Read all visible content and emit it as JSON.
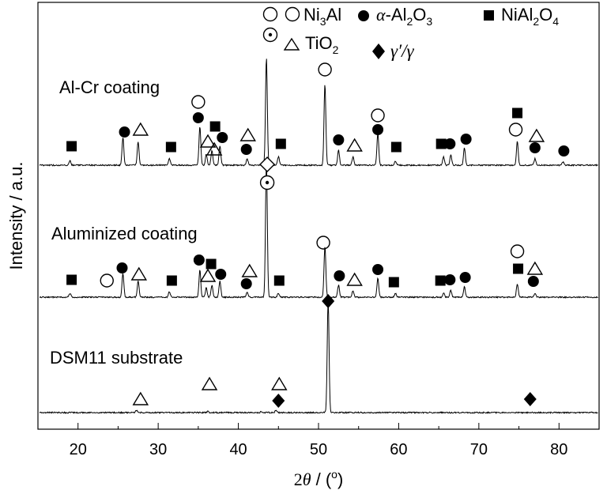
{
  "chart_data": {
    "type": "line",
    "xlabel": "2θ / (°)",
    "ylabel": "Intensity / a.u.",
    "xlim": [
      15,
      85
    ],
    "x_ticks": [
      "20",
      "30",
      "40",
      "50",
      "60",
      "70",
      "80"
    ],
    "series": [
      {
        "name": "Al-Cr coating",
        "baseline": 0,
        "peaks": [
          {
            "x": 19.0,
            "y": 4
          },
          {
            "x": 25.6,
            "y": 26
          },
          {
            "x": 27.5,
            "y": 22
          },
          {
            "x": 31.4,
            "y": 6
          },
          {
            "x": 35.2,
            "y": 36
          },
          {
            "x": 36.0,
            "y": 10
          },
          {
            "x": 36.7,
            "y": 14
          },
          {
            "x": 37.7,
            "y": 18
          },
          {
            "x": 41.1,
            "y": 6
          },
          {
            "x": 43.5,
            "y": 100
          },
          {
            "x": 45.0,
            "y": 8
          },
          {
            "x": 50.8,
            "y": 76
          },
          {
            "x": 52.5,
            "y": 14
          },
          {
            "x": 54.3,
            "y": 8
          },
          {
            "x": 57.4,
            "y": 30
          },
          {
            "x": 59.6,
            "y": 4
          },
          {
            "x": 65.6,
            "y": 8
          },
          {
            "x": 66.5,
            "y": 10
          },
          {
            "x": 68.2,
            "y": 16
          },
          {
            "x": 74.8,
            "y": 22
          },
          {
            "x": 77.0,
            "y": 6
          },
          {
            "x": 80.5,
            "y": 3
          }
        ]
      },
      {
        "name": "Aluminized coating",
        "baseline": 0,
        "peaks": [
          {
            "x": 19.0,
            "y": 3
          },
          {
            "x": 25.6,
            "y": 18
          },
          {
            "x": 27.5,
            "y": 12
          },
          {
            "x": 31.4,
            "y": 4
          },
          {
            "x": 35.2,
            "y": 20
          },
          {
            "x": 36.0,
            "y": 7
          },
          {
            "x": 36.7,
            "y": 9
          },
          {
            "x": 37.7,
            "y": 12
          },
          {
            "x": 41.1,
            "y": 4
          },
          {
            "x": 43.5,
            "y": 100
          },
          {
            "x": 45.0,
            "y": 3
          },
          {
            "x": 50.8,
            "y": 38
          },
          {
            "x": 52.5,
            "y": 9
          },
          {
            "x": 54.3,
            "y": 5
          },
          {
            "x": 57.4,
            "y": 14
          },
          {
            "x": 59.6,
            "y": 3
          },
          {
            "x": 65.6,
            "y": 3
          },
          {
            "x": 66.5,
            "y": 5
          },
          {
            "x": 68.2,
            "y": 8
          },
          {
            "x": 74.8,
            "y": 10
          },
          {
            "x": 77.0,
            "y": 3
          }
        ]
      },
      {
        "name": "DSM11 substrate",
        "baseline": 0,
        "peaks": [
          {
            "x": 27.3,
            "y": 2
          },
          {
            "x": 36.2,
            "y": 1
          },
          {
            "x": 42.9,
            "y": 1
          },
          {
            "x": 44.7,
            "y": 2
          },
          {
            "x": 51.2,
            "y": 100
          }
        ]
      }
    ],
    "phases": [
      {
        "name": "Ni3Al",
        "symbol": "open-circle"
      },
      {
        "name": "α-Al2O3",
        "symbol": "filled-circle"
      },
      {
        "name": "NiAl2O4",
        "symbol": "filled-square"
      },
      {
        "name": "TiO2",
        "symbol": "open-triangle"
      },
      {
        "name": "γ′/γ",
        "symbol": "filled-diamond"
      },
      {
        "name": "",
        "symbol": "dotted-circle"
      }
    ],
    "markers": [
      {
        "s": "filled-square",
        "x": 19.2,
        "y": 185
      },
      {
        "s": "filled-circle",
        "x": 25.8,
        "y": 167
      },
      {
        "s": "open-triangle",
        "x": 27.8,
        "y": 164
      },
      {
        "s": "filled-square",
        "x": 31.6,
        "y": 186
      },
      {
        "s": "open-circle",
        "x": 35.0,
        "y": 129
      },
      {
        "s": "filled-circle",
        "x": 35.0,
        "y": 149
      },
      {
        "s": "filled-square",
        "x": 37.1,
        "y": 160
      },
      {
        "s": "filled-circle",
        "x": 38.0,
        "y": 174
      },
      {
        "s": "open-triangle",
        "x": 36.2,
        "y": 179
      },
      {
        "s": "open-triangle",
        "x": 37.0,
        "y": 189
      },
      {
        "s": "open-triangle",
        "x": 41.2,
        "y": 171
      },
      {
        "s": "filled-circle",
        "x": 41.0,
        "y": 189
      },
      {
        "s": "filled-square",
        "x": 45.3,
        "y": 182
      },
      {
        "s": "open-diamond",
        "x": 43.6,
        "y": 208
      },
      {
        "s": "open-circle",
        "x": 50.8,
        "y": 88
      },
      {
        "s": "filled-circle",
        "x": 52.5,
        "y": 177
      },
      {
        "s": "open-triangle",
        "x": 54.5,
        "y": 184
      },
      {
        "s": "open-circle",
        "x": 57.4,
        "y": 146
      },
      {
        "s": "filled-circle",
        "x": 57.4,
        "y": 164
      },
      {
        "s": "filled-square",
        "x": 59.7,
        "y": 186
      },
      {
        "s": "filled-square",
        "x": 65.3,
        "y": 182
      },
      {
        "s": "filled-circle",
        "x": 66.4,
        "y": 182
      },
      {
        "s": "filled-circle",
        "x": 68.4,
        "y": 176
      },
      {
        "s": "filled-square",
        "x": 74.8,
        "y": 143
      },
      {
        "s": "open-circle",
        "x": 74.6,
        "y": 164
      },
      {
        "s": "open-triangle",
        "x": 77.2,
        "y": 172
      },
      {
        "s": "filled-circle",
        "x": 77.0,
        "y": 187
      },
      {
        "s": "filled-circle",
        "x": 80.6,
        "y": 191
      },
      {
        "s": "dotted-circle",
        "x": 43.6,
        "y": 231
      },
      {
        "s": "filled-square",
        "x": 19.2,
        "y": 354
      },
      {
        "s": "filled-circle",
        "x": 25.5,
        "y": 339
      },
      {
        "s": "open-circle",
        "x": 23.6,
        "y": 355
      },
      {
        "s": "open-triangle",
        "x": 27.6,
        "y": 347
      },
      {
        "s": "filled-square",
        "x": 31.7,
        "y": 355
      },
      {
        "s": "filled-circle",
        "x": 35.1,
        "y": 329
      },
      {
        "s": "filled-square",
        "x": 36.6,
        "y": 334
      },
      {
        "s": "filled-circle",
        "x": 37.8,
        "y": 347
      },
      {
        "s": "open-triangle",
        "x": 36.2,
        "y": 349
      },
      {
        "s": "open-triangle",
        "x": 41.4,
        "y": 343
      },
      {
        "s": "filled-circle",
        "x": 41.0,
        "y": 359
      },
      {
        "s": "filled-square",
        "x": 45.1,
        "y": 355
      },
      {
        "s": "open-circle",
        "x": 50.6,
        "y": 307
      },
      {
        "s": "filled-circle",
        "x": 52.6,
        "y": 349
      },
      {
        "s": "open-triangle",
        "x": 54.5,
        "y": 354
      },
      {
        "s": "filled-circle",
        "x": 57.4,
        "y": 341
      },
      {
        "s": "filled-square",
        "x": 59.4,
        "y": 357
      },
      {
        "s": "filled-square",
        "x": 65.2,
        "y": 355
      },
      {
        "s": "filled-circle",
        "x": 66.4,
        "y": 354
      },
      {
        "s": "filled-circle",
        "x": 68.3,
        "y": 351
      },
      {
        "s": "open-circle",
        "x": 74.8,
        "y": 318
      },
      {
        "s": "filled-square",
        "x": 74.9,
        "y": 340
      },
      {
        "s": "open-triangle",
        "x": 77.0,
        "y": 340
      },
      {
        "s": "filled-circle",
        "x": 76.8,
        "y": 356
      },
      {
        "s": "filled-diamond",
        "x": 51.2,
        "y": 381
      },
      {
        "s": "open-triangle",
        "x": 27.8,
        "y": 505
      },
      {
        "s": "open-triangle",
        "x": 36.4,
        "y": 486
      },
      {
        "s": "open-triangle",
        "x": 45.1,
        "y": 486
      },
      {
        "s": "filled-diamond",
        "x": 45.0,
        "y": 507
      },
      {
        "s": "filled-diamond",
        "x": 76.4,
        "y": 505
      }
    ]
  }
}
